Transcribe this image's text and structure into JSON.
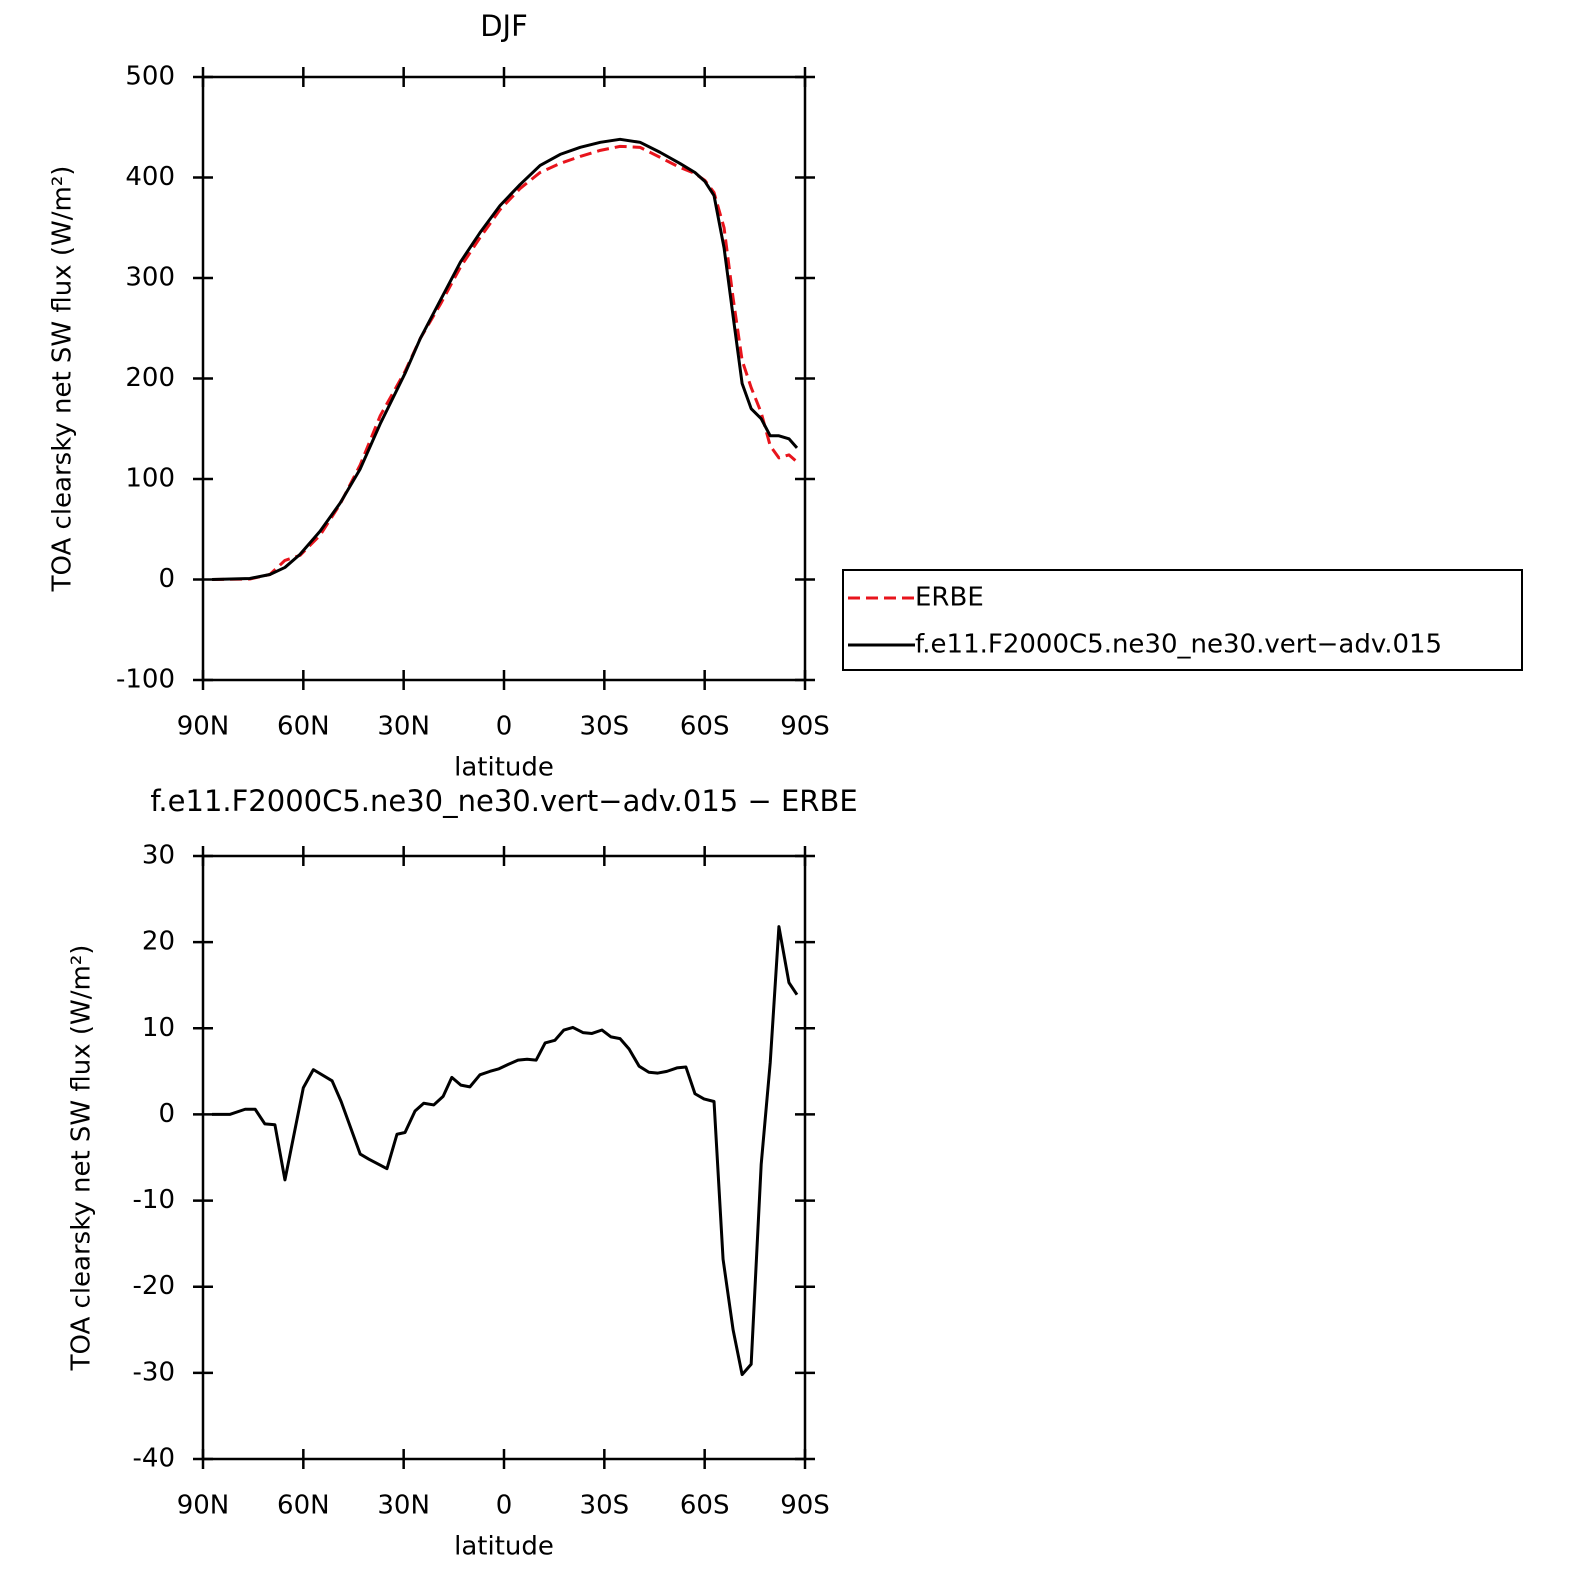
{
  "chart_data": [
    {
      "type": "line",
      "title": "DJF",
      "xlabel": "latitude",
      "ylabel": "TOA clearsky net SW flux (W/m²)",
      "xlim": [
        90,
        -90
      ],
      "ylim": [
        -100,
        500
      ],
      "xticks": [
        {
          "value": 90,
          "label": "90N"
        },
        {
          "value": 60,
          "label": "60N"
        },
        {
          "value": 30,
          "label": "30N"
        },
        0,
        {
          "value": -30,
          "label": "30S"
        },
        {
          "value": -60,
          "label": "60S"
        },
        {
          "value": -90,
          "label": "90S"
        }
      ],
      "yticks": [
        -100,
        0,
        100,
        200,
        300,
        400,
        500
      ],
      "legend": "right",
      "x": [
        87.3,
        76,
        70,
        65.5,
        61,
        55,
        49,
        43,
        37,
        29.6,
        25,
        19,
        13,
        7.2,
        1.2,
        -4.8,
        -10.8,
        -16.8,
        -22.8,
        -28.8,
        -34.7,
        -40.7,
        -46.7,
        -52.6,
        -57.1,
        -60.1,
        -62.8,
        -65.8,
        -68.5,
        -71.2,
        -73.9,
        -76.9,
        -79.6,
        -82.2,
        -85.2,
        -87.6
      ],
      "series": [
        {
          "name": "ERBE",
          "color": "#e8141c",
          "dash": true,
          "values": [
            0,
            0.5,
            5,
            19,
            24,
            44,
            75,
            114,
            163,
            207,
            240,
            274,
            311,
            340,
            368,
            389,
            405,
            414,
            421,
            427,
            431,
            430,
            420,
            410,
            404,
            397,
            385,
            350,
            280,
            218,
            191,
            166,
            133,
            121,
            124,
            117
          ]
        },
        {
          "name": "f.e11.F2000C5.ne30_ne30.vert−adv.015",
          "color": "#000000",
          "dash": false,
          "values": [
            0,
            1,
            5,
            12,
            25,
            48,
            76,
            110,
            155,
            205,
            240,
            278,
            316,
            345,
            372,
            393,
            412,
            423,
            430,
            435,
            438,
            435,
            425,
            414,
            405,
            396,
            382,
            330,
            262,
            195,
            170,
            160,
            143,
            143,
            140,
            131
          ]
        }
      ]
    },
    {
      "type": "line",
      "title": "f.e11.F2000C5.ne30_ne30.vert−adv.015 − ERBE",
      "xlabel": "latitude",
      "ylabel": "TOA clearsky net SW flux (W/m²)",
      "xlim": [
        90,
        -90
      ],
      "ylim": [
        -40,
        30
      ],
      "xticks": [
        {
          "value": 90,
          "label": "90N"
        },
        {
          "value": 60,
          "label": "60N"
        },
        {
          "value": 30,
          "label": "30N"
        },
        0,
        {
          "value": -30,
          "label": "30S"
        },
        {
          "value": -60,
          "label": "60S"
        },
        {
          "value": -90,
          "label": "90S"
        }
      ],
      "yticks": [
        -40,
        -30,
        -20,
        -10,
        0,
        10,
        20,
        30
      ],
      "x": [
        87.3,
        82,
        77.4,
        74.4,
        71.5,
        68.5,
        65.5,
        60,
        57,
        51.4,
        48.7,
        43,
        40.4,
        35,
        32,
        29.6,
        26.6,
        24,
        21,
        18.2,
        15.6,
        12.9,
        10.2,
        7.2,
        4.2,
        1.5,
        -1.2,
        -4.2,
        -6.9,
        -9.6,
        -12.3,
        -15.2,
        -17.9,
        -20.6,
        -23.6,
        -26.3,
        -29.3,
        -32,
        -34.7,
        -37.4,
        -40.4,
        -43.3,
        -46,
        -48.7,
        -51.7,
        -54.4,
        -57.1,
        -59.8,
        -62.8,
        -65.5,
        -68.5,
        -71.2,
        -73.9,
        -76.9,
        -79.6,
        -82.2,
        -85.2,
        -87.6
      ],
      "series": [
        {
          "name": "f.e11.F2000C5.ne30_ne30.vert−adv.015 − ERBE",
          "color": "#000000",
          "dash": false,
          "values": [
            0,
            0,
            0.6,
            0.6,
            -1.1,
            -1.2,
            -7.6,
            3.1,
            5.2,
            3.9,
            1.5,
            -4.6,
            -5.2,
            -6.3,
            -2.3,
            -2.1,
            0.4,
            1.3,
            1.1,
            2.1,
            4.3,
            3.4,
            3.2,
            4.6,
            5.0,
            5.3,
            5.8,
            6.3,
            6.4,
            6.3,
            8.3,
            8.6,
            9.8,
            10.1,
            9.5,
            9.4,
            9.8,
            9.0,
            8.8,
            7.6,
            5.6,
            4.9,
            4.8,
            5.0,
            5.4,
            5.5,
            2.4,
            1.8,
            1.5,
            -16.8,
            -25,
            -30.2,
            -29,
            -5.8,
            6,
            21.8,
            15.3,
            13.9
          ]
        }
      ]
    }
  ]
}
